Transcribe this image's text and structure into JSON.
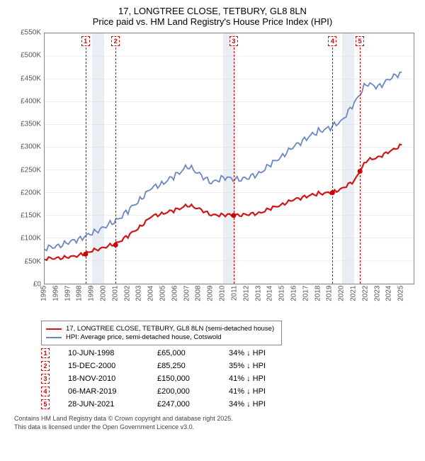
{
  "title_line1": "17, LONGTREE CLOSE, TETBURY, GL8 8LN",
  "title_line2": "Price paid vs. HM Land Registry's House Price Index (HPI)",
  "chart": {
    "type": "line",
    "x_range": [
      1995,
      2026
    ],
    "y_range": [
      0,
      550
    ],
    "y_ticks": [
      0,
      50,
      100,
      150,
      200,
      250,
      300,
      350,
      400,
      450,
      500,
      550
    ],
    "y_tick_labels": [
      "£0",
      "£50K",
      "£100K",
      "£150K",
      "£200K",
      "£250K",
      "£300K",
      "£350K",
      "£400K",
      "£450K",
      "£500K",
      "£550K"
    ],
    "x_ticks": [
      1995,
      1996,
      1997,
      1998,
      1999,
      2000,
      2001,
      2002,
      2003,
      2004,
      2005,
      2006,
      2007,
      2008,
      2009,
      2010,
      2011,
      2012,
      2013,
      2014,
      2015,
      2016,
      2017,
      2018,
      2019,
      2020,
      2021,
      2022,
      2023,
      2024,
      2025
    ],
    "background_color": "#ffffff",
    "grid_color": "#dddddd",
    "bands": [
      [
        1999,
        2000
      ],
      [
        2010,
        2011
      ],
      [
        2020,
        2021
      ]
    ],
    "band_color": "#e9eef5",
    "series": [
      {
        "name": "price_paid",
        "color": "#d01616",
        "line_width": 2.2,
        "points": [
          [
            1995,
            55
          ],
          [
            1996,
            56
          ],
          [
            1997,
            58
          ],
          [
            1998.4,
            65
          ],
          [
            1999,
            72
          ],
          [
            2000,
            80
          ],
          [
            2001,
            88
          ],
          [
            2002,
            105
          ],
          [
            2003,
            125
          ],
          [
            2004,
            148
          ],
          [
            2005,
            155
          ],
          [
            2006,
            162
          ],
          [
            2007,
            172
          ],
          [
            2008,
            165
          ],
          [
            2009,
            150
          ],
          [
            2010,
            152
          ],
          [
            2010.9,
            150
          ],
          [
            2012,
            152
          ],
          [
            2013,
            155
          ],
          [
            2014,
            165
          ],
          [
            2015,
            175
          ],
          [
            2016,
            185
          ],
          [
            2017,
            192
          ],
          [
            2018,
            198
          ],
          [
            2019.2,
            200
          ],
          [
            2020,
            210
          ],
          [
            2021,
            225
          ],
          [
            2021.5,
            247
          ],
          [
            2022,
            270
          ],
          [
            2023,
            278
          ],
          [
            2024,
            290
          ],
          [
            2025,
            305
          ]
        ]
      },
      {
        "name": "hpi",
        "color": "#6a87c4",
        "line_width": 1.8,
        "points": [
          [
            1995,
            78
          ],
          [
            1996,
            82
          ],
          [
            1997,
            90
          ],
          [
            1998,
            100
          ],
          [
            1999,
            110
          ],
          [
            2000,
            125
          ],
          [
            2001,
            138
          ],
          [
            2002,
            160
          ],
          [
            2003,
            185
          ],
          [
            2004,
            210
          ],
          [
            2005,
            222
          ],
          [
            2006,
            238
          ],
          [
            2007,
            258
          ],
          [
            2008,
            242
          ],
          [
            2009,
            220
          ],
          [
            2010,
            235
          ],
          [
            2011,
            228
          ],
          [
            2012,
            232
          ],
          [
            2013,
            242
          ],
          [
            2014,
            262
          ],
          [
            2015,
            282
          ],
          [
            2016,
            302
          ],
          [
            2017,
            320
          ],
          [
            2018,
            335
          ],
          [
            2019,
            342
          ],
          [
            2020,
            360
          ],
          [
            2021,
            395
          ],
          [
            2022,
            440
          ],
          [
            2023,
            432
          ],
          [
            2024,
            450
          ],
          [
            2025,
            465
          ]
        ]
      }
    ],
    "sale_dots": [
      [
        1998.44,
        65
      ],
      [
        2000.96,
        85
      ],
      [
        2010.88,
        150
      ],
      [
        2019.18,
        200
      ],
      [
        2021.49,
        247
      ]
    ],
    "marker_positions": [
      1998.44,
      2000.96,
      2010.88,
      2019.18,
      2021.49
    ],
    "marker_labels": [
      "1",
      "2",
      "3",
      "4",
      "5"
    ]
  },
  "legend": {
    "series1_label": "17, LONGTREE CLOSE, TETBURY, GL8 8LN (semi-detached house)",
    "series1_color": "#d01616",
    "series2_label": "HPI: Average price, semi-detached house, Cotswold",
    "series2_color": "#6a87c4"
  },
  "events": [
    {
      "n": "1",
      "date": "10-JUN-1998",
      "price": "£65,000",
      "diff": "34% ↓ HPI"
    },
    {
      "n": "2",
      "date": "15-DEC-2000",
      "price": "£85,250",
      "diff": "35% ↓ HPI"
    },
    {
      "n": "3",
      "date": "18-NOV-2010",
      "price": "£150,000",
      "diff": "41% ↓ HPI"
    },
    {
      "n": "4",
      "date": "06-MAR-2019",
      "price": "£200,000",
      "diff": "41% ↓ HPI"
    },
    {
      "n": "5",
      "date": "28-JUN-2021",
      "price": "£247,000",
      "diff": "34% ↓ HPI"
    }
  ],
  "footer_line1": "Contains HM Land Registry data © Crown copyright and database right 2025.",
  "footer_line2": "This data is licensed under the Open Government Licence v3.0."
}
